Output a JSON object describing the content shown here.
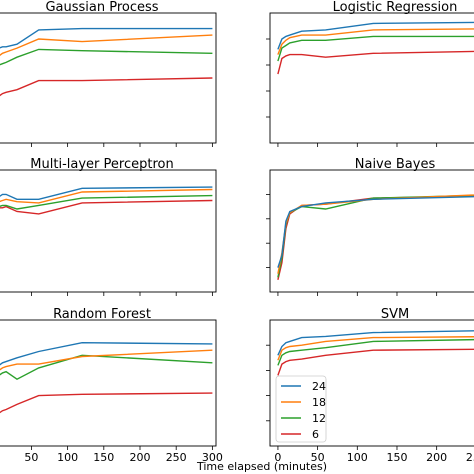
{
  "chart_data": {
    "type": "line",
    "xlabel": "Time elapsed (minutes)",
    "xlim": [
      -10,
      305
    ],
    "ylim": [
      0,
      1
    ],
    "x_ticks": [
      0,
      50,
      100,
      150,
      200,
      250,
      300
    ],
    "x": [
      0,
      5,
      10,
      15,
      30,
      60,
      120,
      300
    ],
    "colors": {
      "24": "#1f77b4",
      "18": "#ff7f0e",
      "12": "#2ca02c",
      "6": "#d62728"
    },
    "legend": {
      "location": "lower-left of SVM panel",
      "entries": [
        "24",
        "18",
        "12",
        "6"
      ]
    },
    "panels": [
      {
        "title": "Gaussian Process",
        "series": [
          {
            "name": "24",
            "values": [
              0.7,
              0.73,
              0.74,
              0.74,
              0.76,
              0.87,
              0.88,
              0.88
            ]
          },
          {
            "name": "18",
            "values": [
              0.63,
              0.67,
              0.69,
              0.7,
              0.73,
              0.8,
              0.78,
              0.83
            ]
          },
          {
            "name": "12",
            "values": [
              0.55,
              0.6,
              0.61,
              0.62,
              0.66,
              0.72,
              0.71,
              0.69
            ]
          },
          {
            "name": "6",
            "values": [
              0.3,
              0.36,
              0.38,
              0.39,
              0.41,
              0.48,
              0.48,
              0.5
            ]
          }
        ]
      },
      {
        "title": "Logistic Regression",
        "series": [
          {
            "name": "24",
            "values": [
              0.72,
              0.8,
              0.82,
              0.83,
              0.86,
              0.87,
              0.92,
              0.93
            ]
          },
          {
            "name": "18",
            "values": [
              0.68,
              0.76,
              0.79,
              0.81,
              0.83,
              0.83,
              0.87,
              0.88
            ]
          },
          {
            "name": "12",
            "values": [
              0.63,
              0.73,
              0.75,
              0.77,
              0.79,
              0.79,
              0.82,
              0.82
            ]
          },
          {
            "name": "6",
            "values": [
              0.53,
              0.65,
              0.67,
              0.68,
              0.68,
              0.66,
              0.69,
              0.71
            ]
          }
        ]
      },
      {
        "title": "Multi-layer Perceptron",
        "series": [
          {
            "name": "24",
            "values": [
              0.72,
              0.78,
              0.8,
              0.8,
              0.76,
              0.76,
              0.85,
              0.86
            ]
          },
          {
            "name": "18",
            "values": [
              0.7,
              0.74,
              0.75,
              0.76,
              0.74,
              0.73,
              0.82,
              0.84
            ]
          },
          {
            "name": "12",
            "values": [
              0.66,
              0.7,
              0.71,
              0.71,
              0.68,
              0.71,
              0.77,
              0.79
            ]
          },
          {
            "name": "6",
            "values": [
              0.68,
              0.69,
              0.69,
              0.7,
              0.66,
              0.64,
              0.73,
              0.75
            ]
          }
        ]
      },
      {
        "title": "Naive Bayes",
        "series": [
          {
            "name": "24",
            "values": [
              0.2,
              0.3,
              0.58,
              0.66,
              0.7,
              0.73,
              0.76,
              0.79
            ]
          },
          {
            "name": "18",
            "values": [
              0.15,
              0.32,
              0.56,
              0.65,
              0.71,
              0.72,
              0.76,
              0.81
            ]
          },
          {
            "name": "12",
            "values": [
              0.12,
              0.28,
              0.55,
              0.65,
              0.7,
              0.68,
              0.77,
              0.8
            ]
          },
          {
            "name": "6",
            "values": [
              0.1,
              0.24,
              0.52,
              0.64,
              0.71,
              0.72,
              0.77,
              0.79
            ]
          }
        ]
      },
      {
        "title": "Random Forest",
        "series": [
          {
            "name": "24",
            "values": [
              0.6,
              0.64,
              0.66,
              0.67,
              0.7,
              0.75,
              0.82,
              0.81
            ]
          },
          {
            "name": "18",
            "values": [
              0.56,
              0.6,
              0.62,
              0.63,
              0.65,
              0.65,
              0.71,
              0.76
            ]
          },
          {
            "name": "12",
            "values": [
              0.52,
              0.56,
              0.58,
              0.59,
              0.53,
              0.62,
              0.72,
              0.66
            ]
          },
          {
            "name": "6",
            "values": [
              0.2,
              0.26,
              0.28,
              0.29,
              0.33,
              0.4,
              0.41,
              0.42
            ]
          }
        ]
      },
      {
        "title": "SVM",
        "series": [
          {
            "name": "24",
            "values": [
              0.72,
              0.79,
              0.82,
              0.83,
              0.86,
              0.87,
              0.9,
              0.92
            ]
          },
          {
            "name": "18",
            "values": [
              0.68,
              0.76,
              0.78,
              0.79,
              0.8,
              0.83,
              0.86,
              0.87
            ]
          },
          {
            "name": "12",
            "values": [
              0.64,
              0.72,
              0.74,
              0.75,
              0.76,
              0.78,
              0.83,
              0.85
            ]
          },
          {
            "name": "6",
            "values": [
              0.56,
              0.65,
              0.67,
              0.68,
              0.69,
              0.72,
              0.76,
              0.77
            ]
          }
        ]
      }
    ]
  }
}
